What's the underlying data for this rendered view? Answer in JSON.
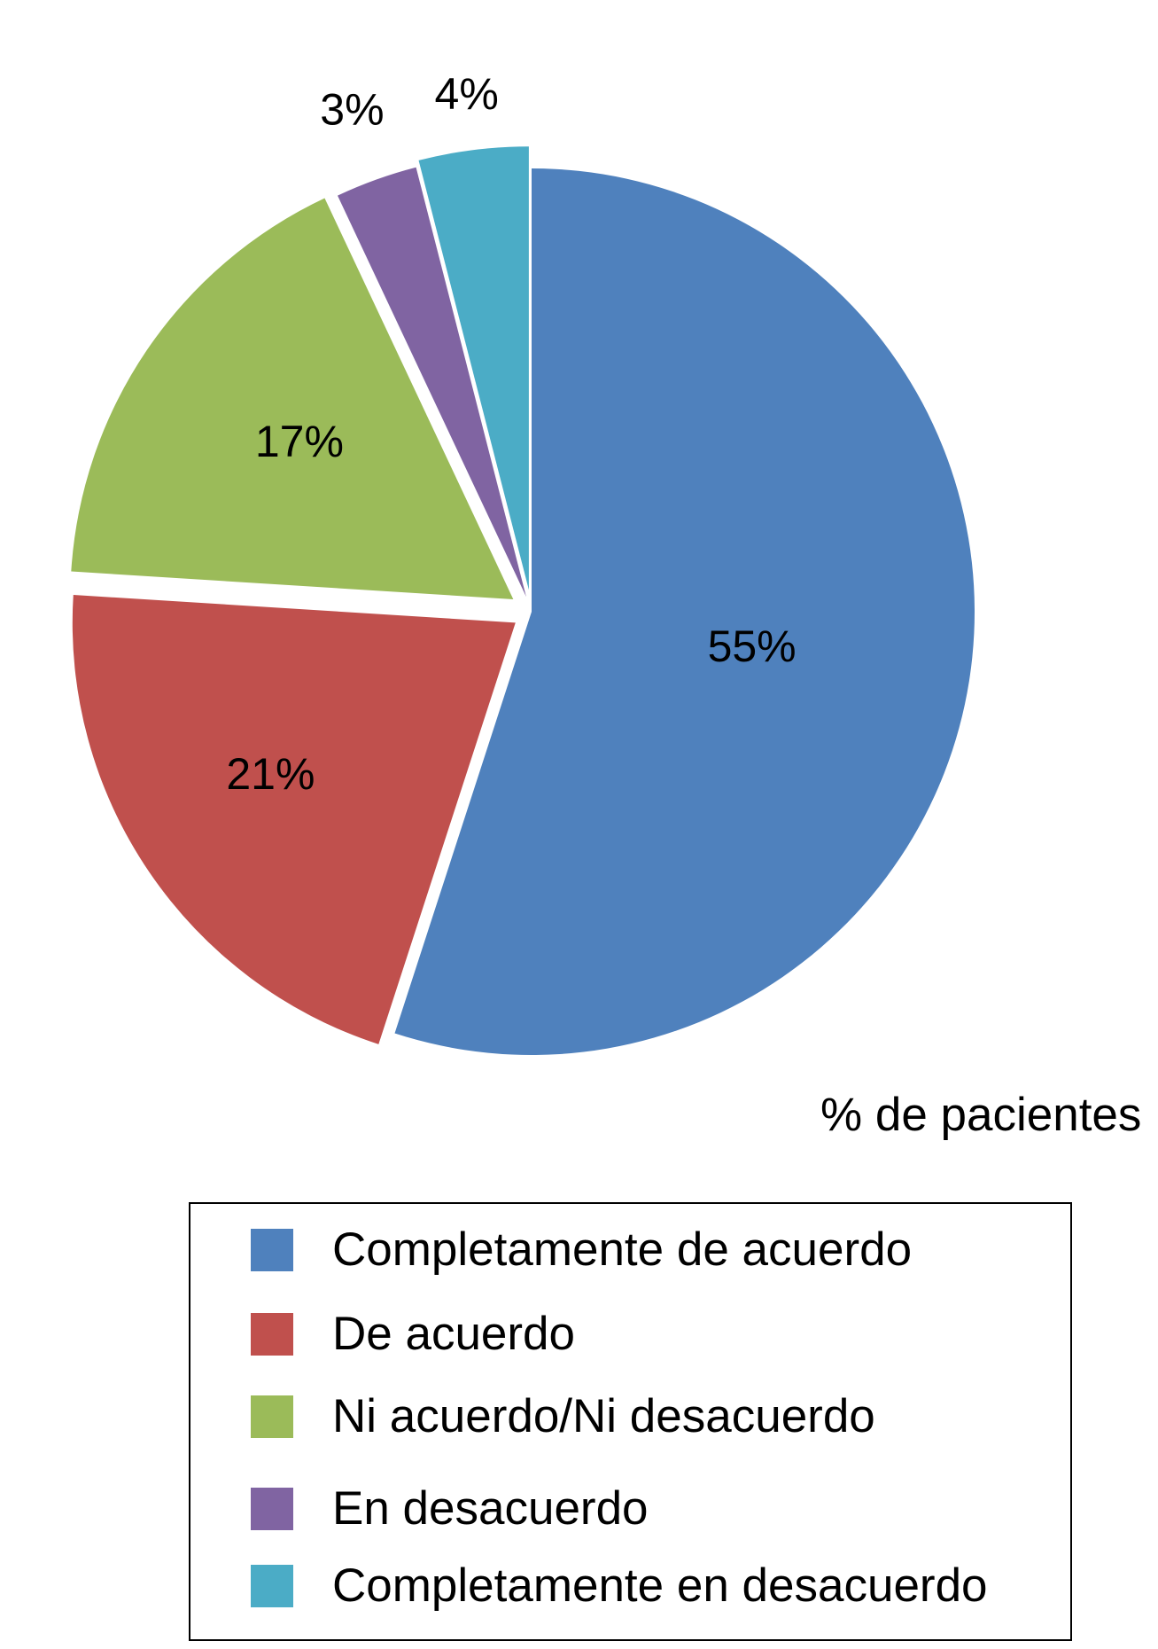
{
  "chart_data": {
    "type": "pie",
    "caption": "% de pacientes",
    "slices": [
      {
        "name": "Completamente de acuerdo",
        "value": 55,
        "label": "55%",
        "color": "#4f81bd"
      },
      {
        "name": "De acuerdo",
        "value": 21,
        "label": "21%",
        "color": "#c0504d"
      },
      {
        "name": "Ni acuerdo/Ni desacuerdo",
        "value": 17,
        "label": "17%",
        "color": "#9bbb59"
      },
      {
        "name": "En desacuerdo",
        "value": 3,
        "label": "3%",
        "color": "#8064a2"
      },
      {
        "name": "Completamente en desacuerdo",
        "value": 4,
        "label": "4%",
        "color": "#4bacc6"
      }
    ],
    "legend": {
      "position": "bottom",
      "items": [
        "Completamente de acuerdo",
        "De acuerdo",
        "Ni acuerdo/Ni desacuerdo",
        "En desacuerdo",
        "Completamente en desacuerdo"
      ]
    }
  }
}
